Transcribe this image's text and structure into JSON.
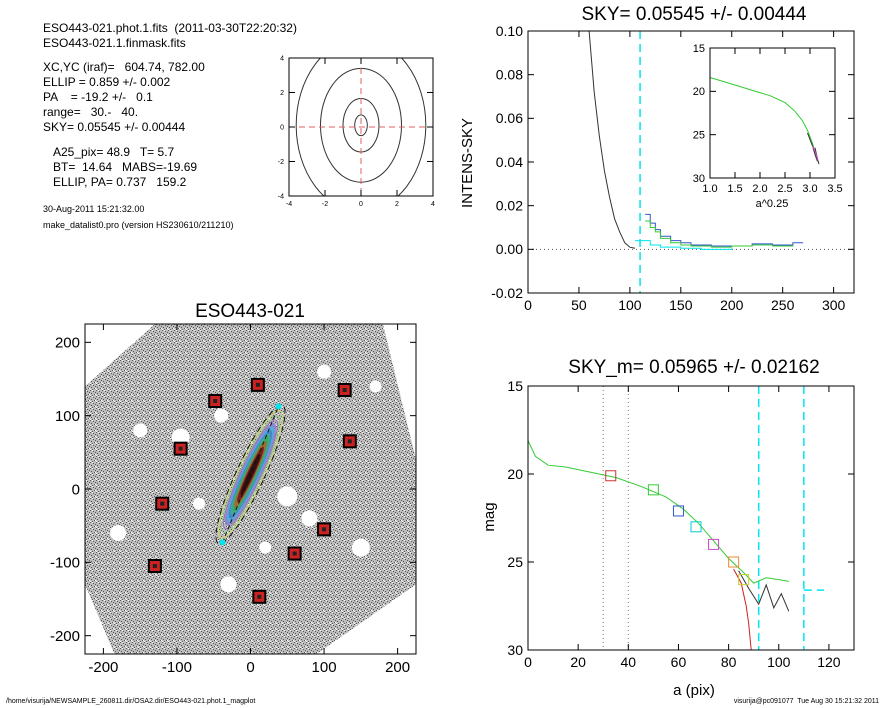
{
  "header": {
    "line1": "ESO443-021.phot.1.fits  (2011-03-30T22:20:32)",
    "line2": "ESO443-021.1.finmask.fits",
    "xcyc": "XC,YC (iraf)=   604.74, 782.00",
    "ellip": "ELLIP = 0.859 +/- 0.002",
    "pa": "PA    = -19.2 +/-   0.1",
    "range": "range=   30.-   40.",
    "sky": "SKY= 0.05545 +/- 0.00444",
    "a25": "A25_pix= 48.9   T= 5.7",
    "bt": "BT=  14.64   MABS=-19.69",
    "ellip_pa": "ELLIP, PA= 0.737   159.2",
    "date": "30-Aug-2011 15:21:32.00",
    "program": "make_datalist0.pro (version HS230610/211210)"
  },
  "footer": {
    "left": "/home/visurija/NEWSAMPLE_260811.dir/OSA2.dir/ESO443-021.phot.1_magplot",
    "right": "visurija@pc091077  Tue Aug 30 15:21:32 2011"
  },
  "colors": {
    "cyan": "#00e5ee",
    "green": "#33cc33",
    "blue": "#3355cc",
    "red": "#cc2222",
    "magenta": "#cc44cc",
    "gray": "#888888"
  },
  "chart_data": [
    {
      "type": "contour",
      "title": "",
      "xticks": [
        "-4",
        "-2",
        "0",
        "2",
        "4"
      ],
      "yticks": [
        "-4",
        "-2",
        "0",
        "2",
        "4"
      ],
      "xlim": [
        -4,
        4
      ],
      "ylim": [
        -4,
        4
      ],
      "contours": [
        {
          "rx": 0.35,
          "ry": 0.6
        },
        {
          "rx": 1.0,
          "ry": 1.55
        },
        {
          "rx": 2.25,
          "ry": 3.3
        },
        {
          "rx": 3.6,
          "ry": 5.0
        }
      ]
    },
    {
      "type": "line",
      "title": "SKY= 0.05545 +/- 0.00444",
      "xlabel": "",
      "ylabel": "INTENS-SKY",
      "xlim": [
        0,
        320
      ],
      "ylim": [
        -0.02,
        0.1
      ],
      "xticks": [
        "0",
        "50",
        "100",
        "150",
        "200",
        "250",
        "300"
      ],
      "yticks": [
        "-0.02",
        "0.00",
        "0.02",
        "0.04",
        "0.06",
        "0.08",
        "0.10"
      ],
      "profile": {
        "x": [
          60,
          65,
          70,
          75,
          80,
          85,
          90,
          95,
          100,
          105
        ],
        "y": [
          0.1,
          0.072,
          0.052,
          0.036,
          0.024,
          0.014,
          0.008,
          0.003,
          0.001,
          0.0005
        ]
      },
      "steps": [
        {
          "name": "blue",
          "x": [
            115,
            120,
            125,
            130,
            140,
            150,
            160,
            180,
            200,
            220,
            240,
            260,
            270
          ],
          "y": [
            0.016,
            0.012,
            0.009,
            0.006,
            0.004,
            0.003,
            0.002,
            0.0015,
            0.0015,
            0.0025,
            0.002,
            0.003,
            0.003
          ]
        },
        {
          "name": "green",
          "x": [
            115,
            120,
            125,
            130,
            140,
            150,
            160,
            180,
            200,
            220,
            240,
            260
          ],
          "y": [
            0.013,
            0.01,
            0.008,
            0.005,
            0.003,
            0.002,
            0.0015,
            0.001,
            0.0015,
            0.002,
            0.0015,
            0.002
          ]
        },
        {
          "name": "cyan",
          "x": [
            105,
            115,
            120,
            130,
            150,
            170,
            200
          ],
          "y": [
            0.004,
            0.004,
            0.002,
            0.001,
            0.0005,
            0.0,
            0.0005
          ]
        }
      ],
      "vline": 110,
      "inset": {
        "xlabel": "a^0.25",
        "xlim": [
          1.0,
          3.5
        ],
        "ylim": [
          15,
          30
        ],
        "xticks": [
          "1.0",
          "1.5",
          "2.0",
          "2.5",
          "3.0",
          "3.5"
        ],
        "yticks": [
          "15",
          "20",
          "25",
          "30"
        ],
        "curve": {
          "x": [
            1.0,
            1.4,
            1.8,
            2.2,
            2.5,
            2.7,
            2.85,
            2.95,
            3.05,
            3.1,
            3.15
          ],
          "y": [
            18.4,
            19.1,
            19.8,
            20.5,
            21.3,
            22.3,
            23.4,
            24.5,
            26.0,
            27.0,
            27.8
          ]
        }
      }
    },
    {
      "type": "image",
      "title": "ESO443-021",
      "xlim": [
        -225,
        225
      ],
      "ylim": [
        -225,
        225
      ],
      "xticks": [
        "-200",
        "-100",
        "0",
        "100",
        "200"
      ],
      "yticks": [
        "-200",
        "-100",
        "0",
        "100",
        "200"
      ],
      "stars": [
        [
          10,
          142
        ],
        [
          -48,
          120
        ],
        [
          128,
          135
        ],
        [
          -95,
          55
        ],
        [
          135,
          65
        ],
        [
          -120,
          -20
        ],
        [
          100,
          -55
        ],
        [
          60,
          -88
        ],
        [
          -130,
          -105
        ],
        [
          12,
          -147
        ]
      ]
    },
    {
      "type": "line",
      "title": "SKY_m=  0.05965 +/- 0.02162",
      "xlabel": "a (pix)",
      "ylabel": "mag",
      "xlim": [
        0,
        130
      ],
      "ylim": [
        30,
        15
      ],
      "xticks": [
        "0",
        "20",
        "40",
        "60",
        "80",
        "100",
        "120"
      ],
      "yticks": [
        "15",
        "20",
        "25",
        "30"
      ],
      "series": [
        {
          "name": "green",
          "x": [
            0,
            3,
            8,
            15,
            25,
            35,
            45,
            55,
            62,
            68,
            74,
            80,
            86,
            90,
            95,
            100,
            104
          ],
          "y": [
            18.1,
            19.0,
            19.5,
            19.6,
            19.9,
            20.2,
            20.7,
            21.3,
            22.0,
            22.8,
            23.8,
            24.8,
            25.6,
            26.2,
            25.9,
            26.0,
            26.1
          ]
        },
        {
          "name": "black",
          "x": [
            84,
            88,
            92,
            95,
            98,
            101,
            104
          ],
          "y": [
            25.5,
            26.5,
            27.4,
            26.3,
            27.6,
            26.8,
            27.8
          ]
        },
        {
          "name": "red",
          "x": [
            82,
            85,
            87,
            88,
            89
          ],
          "y": [
            25.4,
            26.2,
            27.5,
            28.5,
            30
          ]
        }
      ],
      "markers": [
        {
          "name": "red",
          "x": 33,
          "y": 20.1
        },
        {
          "name": "green",
          "x": 50,
          "y": 20.9
        },
        {
          "name": "blue",
          "x": 60,
          "y": 22.1
        },
        {
          "name": "cyan",
          "x": 67,
          "y": 23.0
        },
        {
          "name": "magenta",
          "x": 74,
          "y": 24.0
        },
        {
          "name": "orange",
          "x": 82,
          "y": 25.0
        },
        {
          "name": "yellow",
          "x": 86,
          "y": 26.0
        }
      ],
      "vlines_dotted": [
        30,
        40
      ],
      "vlines_dashed": [
        92,
        110
      ],
      "hline_dashed": {
        "x": [
          110,
          118
        ],
        "y": 26.6
      }
    }
  ]
}
